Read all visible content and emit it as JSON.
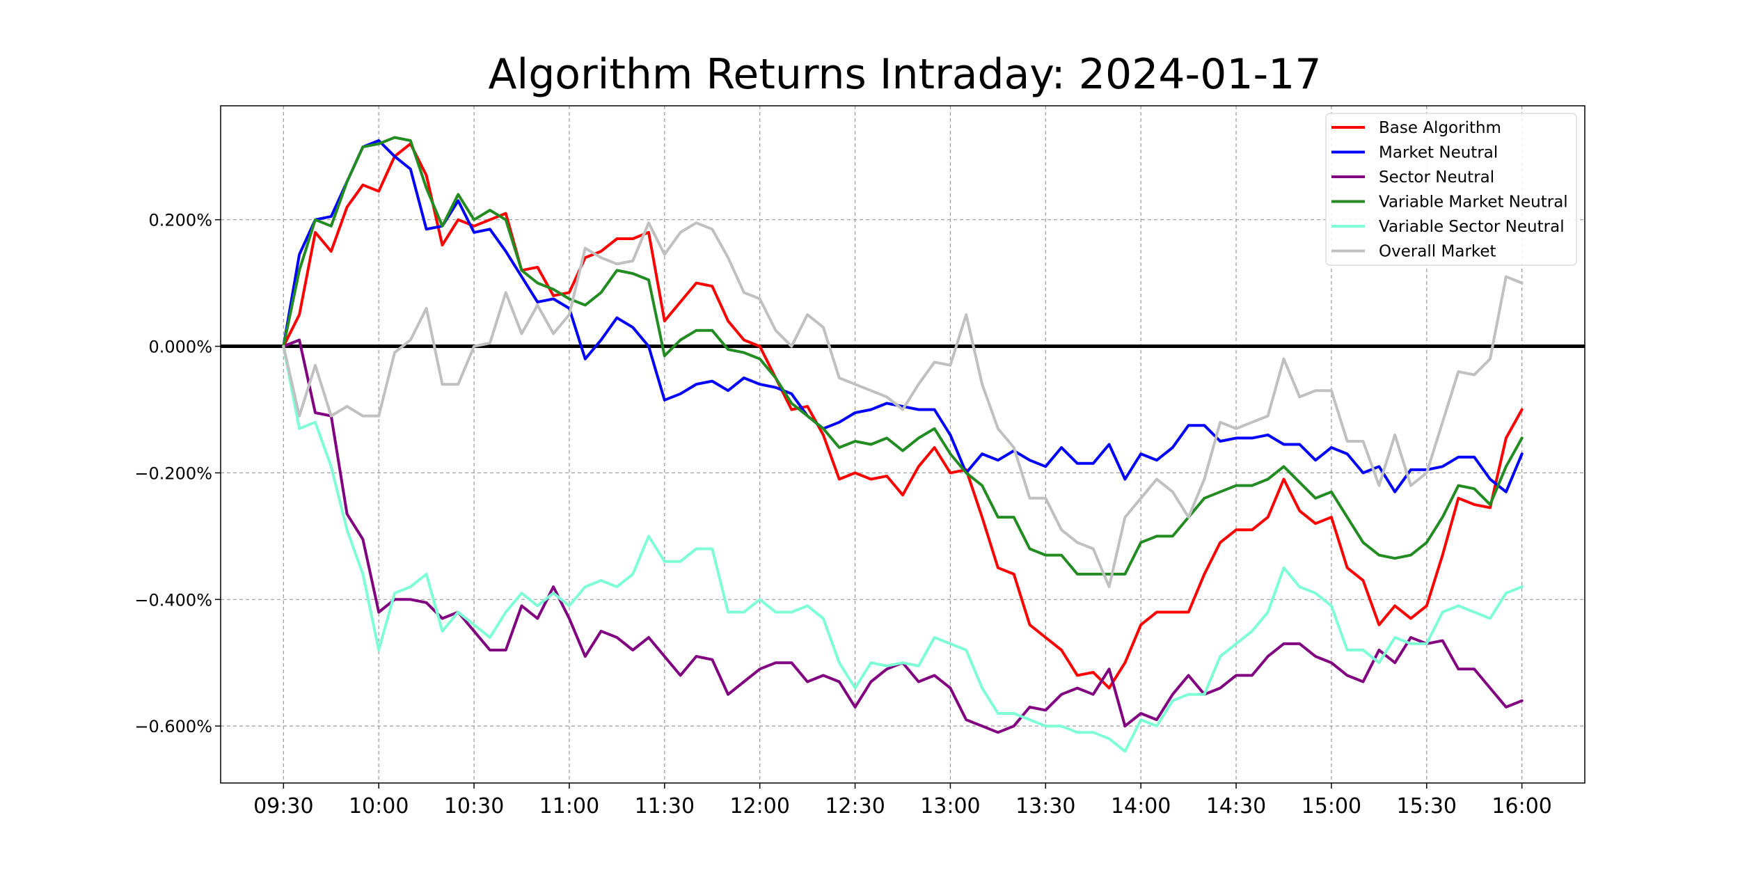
{
  "chart_data": {
    "type": "line",
    "title": "Algorithm Returns Intraday: 2024-01-17",
    "xlabel": "",
    "ylabel": "",
    "x_ticks": [
      "09:30",
      "10:00",
      "10:30",
      "11:00",
      "11:30",
      "12:00",
      "12:30",
      "13:00",
      "13:30",
      "14:00",
      "14:30",
      "15:00",
      "15:30",
      "16:00"
    ],
    "y_ticks": [
      0.002,
      0.0,
      -0.002,
      -0.004,
      -0.006
    ],
    "y_tick_labels": [
      "0.200%",
      "0.000%",
      "−0.200%",
      "−0.400%",
      "−0.600%"
    ],
    "xlim": [
      -0.33,
      6.83
    ],
    "ylim": [
      -0.0069,
      0.0038
    ],
    "grid": true,
    "zero_line": 0.0,
    "legend_position": "top-right",
    "interval_minutes": 5,
    "series": [
      {
        "name": "Base Algorithm",
        "color": "#ff0000",
        "values": [
          0.0,
          0.0005,
          0.0018,
          0.0015,
          0.0022,
          0.00255,
          0.00245,
          0.003,
          0.0032,
          0.0027,
          0.0016,
          0.002,
          0.0019,
          0.002,
          0.0021,
          0.0012,
          0.00125,
          0.0008,
          0.00085,
          0.0014,
          0.0015,
          0.0017,
          0.0017,
          0.0018,
          0.0004,
          0.0007,
          0.001,
          0.00095,
          0.0004,
          0.0001,
          0.0,
          -0.0005,
          -0.001,
          -0.00095,
          -0.0014,
          -0.0021,
          -0.002,
          -0.0021,
          -0.00205,
          -0.00235,
          -0.0019,
          -0.0016,
          -0.002,
          -0.00195,
          -0.0027,
          -0.0035,
          -0.0036,
          -0.0044,
          -0.0046,
          -0.0048,
          -0.0052,
          -0.00515,
          -0.0054,
          -0.005,
          -0.0044,
          -0.0042,
          -0.0042,
          -0.0042,
          -0.0036,
          -0.0031,
          -0.0029,
          -0.0029,
          -0.0027,
          -0.0021,
          -0.0026,
          -0.0028,
          -0.0027,
          -0.0035,
          -0.0037,
          -0.0044,
          -0.0041,
          -0.0043,
          -0.0041,
          -0.0033,
          -0.0024,
          -0.0025,
          -0.00255,
          -0.00145,
          -0.001
        ]
      },
      {
        "name": "Market Neutral",
        "color": "#0000ff",
        "values": [
          0.0,
          0.00145,
          0.002,
          0.00205,
          0.0026,
          0.00315,
          0.00325,
          0.003,
          0.0028,
          0.00185,
          0.0019,
          0.0023,
          0.0018,
          0.00185,
          0.0015,
          0.0011,
          0.0007,
          0.00075,
          0.0006,
          -0.0002,
          0.0001,
          0.00045,
          0.0003,
          0.0,
          -0.00085,
          -0.00075,
          -0.0006,
          -0.00055,
          -0.0007,
          -0.0005,
          -0.0006,
          -0.00065,
          -0.00075,
          -0.0011,
          -0.0013,
          -0.0012,
          -0.00105,
          -0.001,
          -0.0009,
          -0.00095,
          -0.001,
          -0.001,
          -0.0014,
          -0.002,
          -0.0017,
          -0.0018,
          -0.00165,
          -0.0018,
          -0.0019,
          -0.0016,
          -0.00185,
          -0.00185,
          -0.00155,
          -0.0021,
          -0.0017,
          -0.0018,
          -0.0016,
          -0.00125,
          -0.00125,
          -0.0015,
          -0.00145,
          -0.00145,
          -0.0014,
          -0.00155,
          -0.00155,
          -0.0018,
          -0.0016,
          -0.0017,
          -0.002,
          -0.0019,
          -0.0023,
          -0.00195,
          -0.00195,
          -0.0019,
          -0.00175,
          -0.00175,
          -0.0021,
          -0.0023,
          -0.0017
        ]
      },
      {
        "name": "Sector Neutral",
        "color": "#800080",
        "values": [
          0.0,
          0.0001,
          -0.00105,
          -0.0011,
          -0.00265,
          -0.00305,
          -0.0042,
          -0.004,
          -0.004,
          -0.00405,
          -0.0043,
          -0.0042,
          -0.0045,
          -0.0048,
          -0.0048,
          -0.0041,
          -0.0043,
          -0.0038,
          -0.0043,
          -0.0049,
          -0.0045,
          -0.0046,
          -0.0048,
          -0.0046,
          -0.0049,
          -0.0052,
          -0.0049,
          -0.00495,
          -0.0055,
          -0.0053,
          -0.0051,
          -0.005,
          -0.005,
          -0.0053,
          -0.0052,
          -0.0053,
          -0.0057,
          -0.0053,
          -0.0051,
          -0.005,
          -0.0053,
          -0.0052,
          -0.0054,
          -0.0059,
          -0.006,
          -0.0061,
          -0.006,
          -0.0057,
          -0.00575,
          -0.0055,
          -0.0054,
          -0.0055,
          -0.0051,
          -0.006,
          -0.0058,
          -0.0059,
          -0.0055,
          -0.0052,
          -0.0055,
          -0.0054,
          -0.0052,
          -0.0052,
          -0.0049,
          -0.0047,
          -0.0047,
          -0.0049,
          -0.005,
          -0.0052,
          -0.0053,
          -0.0048,
          -0.005,
          -0.0046,
          -0.0047,
          -0.00465,
          -0.0051,
          -0.0051,
          -0.0054,
          -0.0057,
          -0.0056
        ]
      },
      {
        "name": "Variable Market Neutral",
        "color": "#228b22",
        "values": [
          0.0,
          0.0012,
          0.002,
          0.0019,
          0.0026,
          0.00315,
          0.0032,
          0.0033,
          0.00325,
          0.0025,
          0.0019,
          0.0024,
          0.002,
          0.00215,
          0.002,
          0.0012,
          0.001,
          0.0009,
          0.00075,
          0.00065,
          0.00085,
          0.0012,
          0.00115,
          0.00105,
          -0.00015,
          0.0001,
          0.00025,
          0.00025,
          -5e-05,
          -0.0001,
          -0.0002,
          -0.0005,
          -0.0009,
          -0.0011,
          -0.0013,
          -0.0016,
          -0.0015,
          -0.00155,
          -0.00145,
          -0.00165,
          -0.00145,
          -0.0013,
          -0.0017,
          -0.002,
          -0.0022,
          -0.0027,
          -0.0027,
          -0.0032,
          -0.0033,
          -0.0033,
          -0.0036,
          -0.0036,
          -0.0036,
          -0.0036,
          -0.0031,
          -0.003,
          -0.003,
          -0.0027,
          -0.0024,
          -0.0023,
          -0.0022,
          -0.0022,
          -0.0021,
          -0.0019,
          -0.00215,
          -0.0024,
          -0.0023,
          -0.0027,
          -0.0031,
          -0.0033,
          -0.00335,
          -0.0033,
          -0.0031,
          -0.0027,
          -0.0022,
          -0.00225,
          -0.0025,
          -0.0019,
          -0.00145
        ]
      },
      {
        "name": "Variable Sector Neutral",
        "color": "#7fffd4",
        "values": [
          0.0,
          -0.0013,
          -0.0012,
          -0.0019,
          -0.0029,
          -0.0036,
          -0.0048,
          -0.0039,
          -0.0038,
          -0.0036,
          -0.0045,
          -0.0042,
          -0.0044,
          -0.0046,
          -0.0042,
          -0.0039,
          -0.0041,
          -0.0039,
          -0.0041,
          -0.0038,
          -0.0037,
          -0.0038,
          -0.0036,
          -0.003,
          -0.0034,
          -0.0034,
          -0.0032,
          -0.0032,
          -0.0042,
          -0.0042,
          -0.004,
          -0.0042,
          -0.0042,
          -0.0041,
          -0.0043,
          -0.005,
          -0.0054,
          -0.005,
          -0.00505,
          -0.005,
          -0.00505,
          -0.0046,
          -0.0047,
          -0.0048,
          -0.0054,
          -0.0058,
          -0.0058,
          -0.0059,
          -0.006,
          -0.006,
          -0.0061,
          -0.0061,
          -0.0062,
          -0.0064,
          -0.0059,
          -0.006,
          -0.0056,
          -0.0055,
          -0.0055,
          -0.0049,
          -0.0047,
          -0.0045,
          -0.0042,
          -0.0035,
          -0.0038,
          -0.0039,
          -0.0041,
          -0.0048,
          -0.0048,
          -0.005,
          -0.0046,
          -0.0047,
          -0.0047,
          -0.0042,
          -0.0041,
          -0.0042,
          -0.0043,
          -0.0039,
          -0.0038
        ]
      },
      {
        "name": "Overall Market",
        "color": "#c0c0c0",
        "values": [
          0.0,
          -0.0011,
          -0.0003,
          -0.0011,
          -0.00095,
          -0.0011,
          -0.0011,
          -0.0001,
          0.0001,
          0.0006,
          -0.0006,
          -0.0006,
          0.0,
          5e-05,
          0.00085,
          0.0002,
          0.00065,
          0.0002,
          0.0005,
          0.00155,
          0.0014,
          0.0013,
          0.00135,
          0.00195,
          0.00145,
          0.0018,
          0.00195,
          0.00185,
          0.0014,
          0.00085,
          0.00075,
          0.00025,
          0.0,
          0.0005,
          0.0003,
          -0.0005,
          -0.0006,
          -0.0007,
          -0.0008,
          -0.001,
          -0.0006,
          -0.00025,
          -0.0003,
          0.0005,
          -0.0006,
          -0.0013,
          -0.0016,
          -0.0024,
          -0.0024,
          -0.0029,
          -0.0031,
          -0.0032,
          -0.0038,
          -0.0027,
          -0.0024,
          -0.0021,
          -0.0023,
          -0.0027,
          -0.0021,
          -0.0012,
          -0.0013,
          -0.0012,
          -0.0011,
          -0.0002,
          -0.0008,
          -0.0007,
          -0.0007,
          -0.0015,
          -0.0015,
          -0.0022,
          -0.0014,
          -0.0022,
          -0.002,
          -0.0012,
          -0.0004,
          -0.00045,
          -0.0002,
          0.0011,
          0.001
        ]
      }
    ]
  }
}
